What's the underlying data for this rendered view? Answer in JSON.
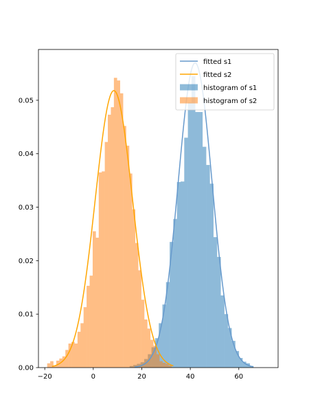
{
  "chart_data": {
    "type": "histogram",
    "title": "",
    "xlabel": "",
    "ylabel": "",
    "xlim": [
      -22.6,
      76.2
    ],
    "ylim": [
      0,
      0.0595
    ],
    "xticks": [
      -20,
      0,
      20,
      40,
      60
    ],
    "yticks": [
      0.0,
      0.01,
      0.02,
      0.03,
      0.04,
      0.05
    ],
    "xtick_labels": [
      "−20",
      "0",
      "20",
      "40",
      "60"
    ],
    "ytick_labels": [
      "0.00",
      "0.01",
      "0.02",
      "0.03",
      "0.04",
      "0.05"
    ],
    "grid": false,
    "legend": {
      "position": "upper right",
      "entries": [
        {
          "label": "fitted s1",
          "type": "line",
          "color": "#6699cc"
        },
        {
          "label": "fitted s2",
          "type": "line",
          "color": "#ffa500"
        },
        {
          "label": "histogram of s1",
          "type": "patch",
          "color": "#1f77b4"
        },
        {
          "label": "histogram of s2",
          "type": "patch",
          "color": "#ff7f0e"
        }
      ]
    },
    "series": [
      {
        "name": "histogram of s1",
        "kind": "histogram",
        "color": "#1f77b4",
        "alpha": 0.5,
        "bin_edges": [
          15.0,
          16.5,
          18.0,
          19.5,
          21.0,
          22.5,
          24.0,
          25.5,
          27.0,
          28.5,
          30.0,
          31.5,
          33.0,
          34.5,
          36.0,
          37.5,
          39.0,
          40.5,
          42.0,
          43.5,
          45.0,
          46.5,
          48.0,
          49.5,
          51.0,
          52.5,
          54.0,
          55.5,
          57.0,
          58.5,
          60.0,
          61.5,
          63.0,
          64.5,
          66.0
        ],
        "values": [
          0.0003,
          0.0005,
          0.0007,
          0.001,
          0.0016,
          0.0025,
          0.0038,
          0.0055,
          0.0083,
          0.0118,
          0.016,
          0.0235,
          0.0278,
          0.0347,
          0.0348,
          0.043,
          0.0496,
          0.0545,
          0.0478,
          0.0478,
          0.0413,
          0.0379,
          0.0344,
          0.0244,
          0.0207,
          0.0135,
          0.01,
          0.0074,
          0.005,
          0.0031,
          0.0018,
          0.0011,
          0.0008,
          0.0003
        ]
      },
      {
        "name": "histogram of s2",
        "kind": "histogram",
        "color": "#ff7f0e",
        "alpha": 0.5,
        "bin_edges": [
          -19.0,
          -17.75,
          -16.5,
          -15.25,
          -14.0,
          -12.75,
          -11.5,
          -10.25,
          -9.0,
          -7.75,
          -6.5,
          -5.25,
          -4.0,
          -2.75,
          -1.5,
          -0.25,
          1.0,
          2.25,
          3.5,
          4.75,
          6.0,
          7.25,
          8.5,
          9.75,
          11.0,
          12.25,
          13.5,
          14.75,
          16.0,
          17.25,
          18.5,
          19.75,
          21.0,
          22.25,
          23.5,
          24.75,
          26.0,
          27.25,
          28.5,
          29.75,
          31.0,
          32.25
        ],
        "values": [
          0.0008,
          0.0012,
          0.0004,
          0.0013,
          0.0017,
          0.0021,
          0.0033,
          0.0045,
          0.0048,
          0.0045,
          0.0067,
          0.0083,
          0.0113,
          0.0153,
          0.0172,
          0.0255,
          0.0243,
          0.0365,
          0.0367,
          0.0422,
          0.0473,
          0.0487,
          0.0542,
          0.0537,
          0.0513,
          0.0452,
          0.0415,
          0.0363,
          0.0296,
          0.0233,
          0.0182,
          0.0127,
          0.009,
          0.0073,
          0.0052,
          0.0041,
          0.0025,
          0.0012,
          0.0009,
          0.0007,
          0.0004
        ]
      },
      {
        "name": "fitted s1",
        "kind": "normal_pdf",
        "color": "#6699cc",
        "mean": 42.0,
        "std": 7.0,
        "x_range": [
          17.0,
          66.0
        ]
      },
      {
        "name": "fitted s2",
        "kind": "normal_pdf",
        "color": "#ffa500",
        "mean": 8.5,
        "std": 7.7,
        "x_range": [
          -17.0,
          33.0
        ]
      }
    ]
  }
}
